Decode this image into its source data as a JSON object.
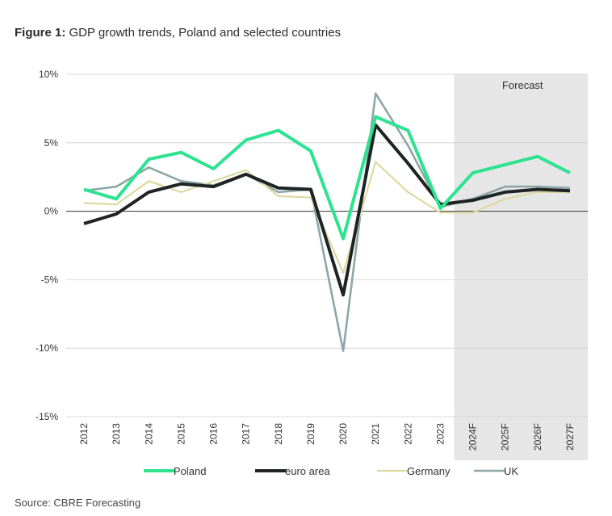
{
  "title": {
    "prefix": "Figure 1:",
    "text": " GDP growth trends, Poland and selected countries"
  },
  "source": "Source: CBRE Forecasting",
  "colors": {
    "Poland": "#2de38f",
    "euro area": "#1e2424",
    "Germany": "#ddd9a0",
    "UK": "#8ea6a6",
    "forecast_band": "#e6e6e6",
    "grid": "#cfcfcf",
    "zero": "#333333"
  },
  "chart_data": {
    "type": "line",
    "title": "GDP growth trends, Poland and selected countries",
    "xlabel": "",
    "ylabel": "",
    "categories": [
      "2012",
      "2013",
      "2014",
      "2015",
      "2016",
      "2017",
      "2018",
      "2019",
      "2020",
      "2021",
      "2022",
      "2023",
      "2024F",
      "2025F",
      "2026F",
      "2027F"
    ],
    "yticks": [
      10,
      5,
      0,
      -5,
      -10,
      -15
    ],
    "ytick_labels": [
      "10%",
      "5%",
      "0%",
      "-5%",
      "-10%",
      "-15%"
    ],
    "ylim": [
      -15,
      10
    ],
    "grid": true,
    "legend_position": "bottom",
    "forecast_label": "Forecast",
    "forecast_start": "2024F",
    "series": [
      {
        "name": "Poland",
        "values": [
          1.6,
          0.9,
          3.8,
          4.3,
          3.1,
          5.2,
          5.9,
          4.4,
          -2.0,
          6.9,
          5.9,
          0.2,
          2.8,
          3.4,
          4.0,
          2.8
        ]
      },
      {
        "name": "euro area",
        "values": [
          -0.9,
          -0.2,
          1.4,
          2.0,
          1.8,
          2.7,
          1.7,
          1.6,
          -6.1,
          6.3,
          3.5,
          0.5,
          0.8,
          1.4,
          1.6,
          1.5
        ]
      },
      {
        "name": "Germany",
        "values": [
          0.6,
          0.5,
          2.2,
          1.4,
          2.2,
          3.0,
          1.1,
          1.0,
          -4.5,
          3.6,
          1.4,
          -0.1,
          -0.1,
          0.9,
          1.4,
          1.4
        ]
      },
      {
        "name": "UK",
        "values": [
          1.5,
          1.8,
          3.2,
          2.2,
          1.9,
          2.7,
          1.4,
          1.6,
          -10.2,
          8.6,
          4.8,
          0.3,
          0.9,
          1.8,
          1.8,
          1.7
        ]
      }
    ]
  }
}
